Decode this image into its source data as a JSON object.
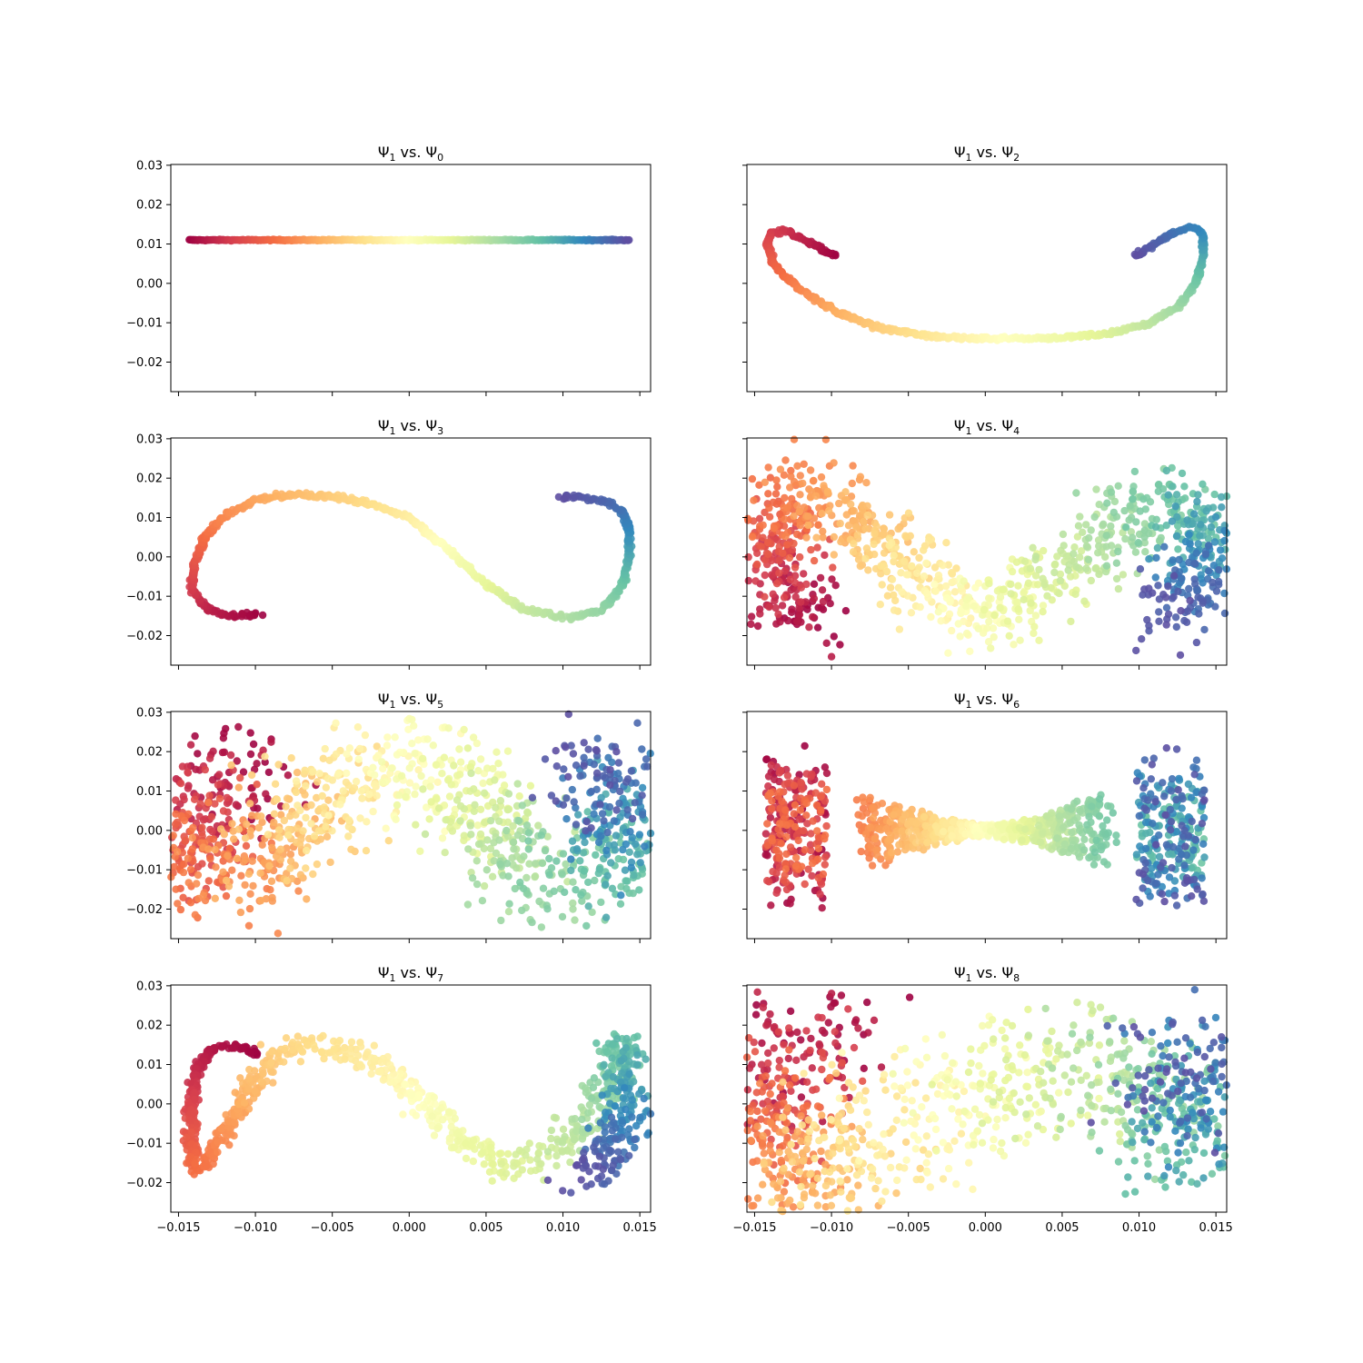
{
  "chart_data": [
    {
      "id": "p0",
      "type": "scatter",
      "title": {
        "main1": "Ψ",
        "sub1": "1",
        "mid": " vs. ",
        "main2": "Ψ",
        "sub2": "0"
      },
      "xlim": [
        -0.0155,
        0.0157
      ],
      "ylim": [
        -0.0275,
        0.0302
      ],
      "x_ticks": [
        "−0.015",
        "−0.010",
        "−0.005",
        "0.000",
        "0.005",
        "0.010",
        "0.015"
      ],
      "x_tick_values": [
        -0.015,
        -0.01,
        -0.005,
        0,
        0.005,
        0.01,
        0.015
      ],
      "y_ticks": [
        "0.03",
        "0.02",
        "0.01",
        "0.00",
        "−0.01",
        "−0.02"
      ],
      "y_tick_values": [
        0.03,
        0.02,
        0.01,
        0,
        -0.01,
        -0.02
      ],
      "show_x_labels": false,
      "show_y_labels": true,
      "curve": {
        "kind": "line",
        "y": 0.011,
        "x_start": -0.0143,
        "x_end": 0.0143
      },
      "width_start": 0.00045,
      "width_end": 0.00045,
      "n": 420
    },
    {
      "id": "p1",
      "type": "scatter",
      "title": {
        "main1": "Ψ",
        "sub1": "1",
        "mid": " vs. ",
        "main2": "Ψ",
        "sub2": "2"
      },
      "xlim": [
        -0.0155,
        0.0157
      ],
      "ylim": [
        -0.0275,
        0.0302
      ],
      "x_ticks": [
        "−0.015",
        "−0.010",
        "−0.005",
        "0.000",
        "0.005",
        "0.010",
        "0.015"
      ],
      "x_tick_values": [
        -0.015,
        -0.01,
        -0.005,
        0,
        0.005,
        0.01,
        0.015
      ],
      "y_ticks": [
        "0.03",
        "0.02",
        "0.01",
        "0.00",
        "−0.01",
        "−0.02"
      ],
      "y_tick_values": [
        0.03,
        0.02,
        0.01,
        0,
        -0.01,
        -0.02
      ],
      "show_x_labels": false,
      "show_y_labels": false,
      "curve": {
        "kind": "poly",
        "pts": [
          [
            -0.0098,
            0.007
          ],
          [
            -0.0115,
            0.0105
          ],
          [
            -0.013,
            0.0135
          ],
          [
            -0.0139,
            0.0128
          ],
          [
            -0.0142,
            0.01
          ],
          [
            -0.0138,
            0.005
          ],
          [
            -0.013,
            0.0015
          ],
          [
            -0.0115,
            -0.003
          ],
          [
            -0.0095,
            -0.0075
          ],
          [
            -0.007,
            -0.0112
          ],
          [
            -0.004,
            -0.0132
          ],
          [
            -0.001,
            -0.014
          ],
          [
            0.002,
            -0.014
          ],
          [
            0.005,
            -0.0138
          ],
          [
            0.008,
            -0.0128
          ],
          [
            0.0105,
            -0.0105
          ],
          [
            0.0125,
            -0.006
          ],
          [
            0.0137,
            0.0
          ],
          [
            0.0142,
            0.008
          ],
          [
            0.0142,
            0.0125
          ],
          [
            0.0135,
            0.0143
          ],
          [
            0.0122,
            0.0128
          ],
          [
            0.011,
            0.0098
          ],
          [
            0.0098,
            0.0072
          ]
        ]
      },
      "width_start": 0.0006,
      "width_end": 0.0006,
      "n": 620
    },
    {
      "id": "p2",
      "type": "scatter",
      "title": {
        "main1": "Ψ",
        "sub1": "1",
        "mid": " vs. ",
        "main2": "Ψ",
        "sub2": "3"
      },
      "xlim": [
        -0.0155,
        0.0157
      ],
      "ylim": [
        -0.0275,
        0.0302
      ],
      "x_ticks": [
        "−0.015",
        "−0.010",
        "−0.005",
        "0.000",
        "0.005",
        "0.010",
        "0.015"
      ],
      "x_tick_values": [
        -0.015,
        -0.01,
        -0.005,
        0,
        0.005,
        0.01,
        0.015
      ],
      "y_ticks": [
        "0.03",
        "0.02",
        "0.01",
        "0.00",
        "−0.01",
        "−0.02"
      ],
      "y_tick_values": [
        0.03,
        0.02,
        0.01,
        0,
        -0.01,
        -0.02
      ],
      "show_x_labels": false,
      "show_y_labels": true,
      "curve": {
        "kind": "poly",
        "pts": [
          [
            -0.0097,
            -0.0148
          ],
          [
            -0.0118,
            -0.0148
          ],
          [
            -0.0132,
            -0.013
          ],
          [
            -0.0141,
            -0.0085
          ],
          [
            -0.014,
            -0.002
          ],
          [
            -0.0133,
            0.005
          ],
          [
            -0.012,
            0.0105
          ],
          [
            -0.01,
            0.0145
          ],
          [
            -0.0075,
            0.0158
          ],
          [
            -0.005,
            0.0155
          ],
          [
            -0.0025,
            0.0135
          ],
          [
            0.0,
            0.01
          ],
          [
            0.0025,
            0.002
          ],
          [
            0.005,
            -0.007
          ],
          [
            0.0075,
            -0.0133
          ],
          [
            0.0105,
            -0.0155
          ],
          [
            0.0125,
            -0.0135
          ],
          [
            0.0138,
            -0.008
          ],
          [
            0.0143,
            0.0
          ],
          [
            0.0143,
            0.0075
          ],
          [
            0.0138,
            0.012
          ],
          [
            0.0125,
            0.0145
          ],
          [
            0.011,
            0.0152
          ],
          [
            0.0098,
            0.0152
          ]
        ]
      },
      "width_start": 0.0007,
      "width_end": 0.0007,
      "n": 650
    },
    {
      "id": "p3",
      "type": "scatter",
      "title": {
        "main1": "Ψ",
        "sub1": "1",
        "mid": " vs. ",
        "main2": "Ψ",
        "sub2": "4"
      },
      "xlim": [
        -0.0155,
        0.0157
      ],
      "ylim": [
        -0.0275,
        0.0302
      ],
      "x_ticks": [
        "−0.015",
        "−0.010",
        "−0.005",
        "0.000",
        "0.005",
        "0.010",
        "0.015"
      ],
      "x_tick_values": [
        -0.015,
        -0.01,
        -0.005,
        0,
        0.005,
        0.01,
        0.015
      ],
      "y_ticks": [
        "0.03",
        "0.02",
        "0.01",
        "0.00",
        "−0.01",
        "−0.02"
      ],
      "y_tick_values": [
        0.03,
        0.02,
        0.01,
        0,
        -0.01,
        -0.02
      ],
      "show_x_labels": false,
      "show_y_labels": false,
      "curve": {
        "kind": "poly",
        "pts": [
          [
            -0.0105,
            -0.015
          ],
          [
            -0.013,
            -0.011
          ],
          [
            -0.014,
            -0.003
          ],
          [
            -0.0138,
            0.008
          ],
          [
            -0.0125,
            0.017
          ],
          [
            -0.0105,
            0.016
          ],
          [
            -0.0075,
            0.006
          ],
          [
            -0.004,
            -0.006
          ],
          [
            0.0,
            -0.016
          ],
          [
            0.004,
            -0.006
          ],
          [
            0.0085,
            0.006
          ],
          [
            0.0118,
            0.014
          ],
          [
            0.0137,
            0.013
          ],
          [
            0.0142,
            0.0
          ],
          [
            0.0138,
            -0.009
          ],
          [
            0.011,
            -0.013
          ]
        ]
      },
      "width_start": 0.011,
      "width_end": 0.011,
      "n": 1100
    },
    {
      "id": "p4",
      "type": "scatter",
      "title": {
        "main1": "Ψ",
        "sub1": "1",
        "mid": " vs. ",
        "main2": "Ψ",
        "sub2": "5"
      },
      "xlim": [
        -0.0155,
        0.0157
      ],
      "ylim": [
        -0.0275,
        0.0302
      ],
      "x_ticks": [
        "−0.015",
        "−0.010",
        "−0.005",
        "0.000",
        "0.005",
        "0.010",
        "0.015"
      ],
      "x_tick_values": [
        -0.015,
        -0.01,
        -0.005,
        0,
        0.005,
        0.01,
        0.015
      ],
      "y_ticks": [
        "0.03",
        "0.02",
        "0.01",
        "0.00",
        "−0.01",
        "−0.02"
      ],
      "y_tick_values": [
        0.03,
        0.02,
        0.01,
        0,
        -0.01,
        -0.02
      ],
      "show_x_labels": false,
      "show_y_labels": true,
      "curve": {
        "kind": "poly",
        "pts": [
          [
            -0.0105,
            0.017
          ],
          [
            -0.013,
            0.01
          ],
          [
            -0.0141,
            0.0
          ],
          [
            -0.0135,
            -0.012
          ],
          [
            -0.011,
            -0.01
          ],
          [
            -0.008,
            -0.002
          ],
          [
            -0.004,
            0.012
          ],
          [
            0.0,
            0.017
          ],
          [
            0.004,
            0.01
          ],
          [
            0.007,
            -0.006
          ],
          [
            0.0105,
            -0.012
          ],
          [
            0.0135,
            -0.01
          ],
          [
            0.0142,
            0.0
          ],
          [
            0.0138,
            0.01
          ],
          [
            0.011,
            0.016
          ]
        ]
      },
      "width_start": 0.016,
      "width_end": 0.016,
      "n": 1200
    },
    {
      "id": "p5",
      "type": "scatter",
      "title": {
        "main1": "Ψ",
        "sub1": "1",
        "mid": " vs. ",
        "main2": "Ψ",
        "sub2": "6"
      },
      "xlim": [
        -0.0155,
        0.0157
      ],
      "ylim": [
        -0.0275,
        0.0302
      ],
      "x_ticks": [
        "−0.015",
        "−0.010",
        "−0.005",
        "0.000",
        "0.005",
        "0.010",
        "0.015"
      ],
      "x_tick_values": [
        -0.015,
        -0.01,
        -0.005,
        0,
        0.005,
        0.01,
        0.015
      ],
      "y_ticks": [
        "0.03",
        "0.02",
        "0.01",
        "0.00",
        "−0.01",
        "−0.02"
      ],
      "y_tick_values": [
        0.03,
        0.02,
        0.01,
        0,
        -0.01,
        -0.02
      ],
      "show_x_labels": false,
      "show_y_labels": false,
      "curve": {
        "kind": "line",
        "y": 0.0,
        "x_start": -0.0143,
        "x_end": 0.0143
      },
      "bowtie": true,
      "n": 1200
    },
    {
      "id": "p6",
      "type": "scatter",
      "title": {
        "main1": "Ψ",
        "sub1": "1",
        "mid": " vs. ",
        "main2": "Ψ",
        "sub2": "7"
      },
      "xlim": [
        -0.0155,
        0.0157
      ],
      "ylim": [
        -0.0275,
        0.0302
      ],
      "x_ticks": [
        "−0.015",
        "−0.010",
        "−0.005",
        "0.000",
        "0.005",
        "0.010",
        "0.015"
      ],
      "x_tick_values": [
        -0.015,
        -0.01,
        -0.005,
        0,
        0.005,
        0.01,
        0.015
      ],
      "y_ticks": [
        "0.03",
        "0.02",
        "0.01",
        "0.00",
        "−0.01",
        "−0.02"
      ],
      "y_tick_values": [
        0.03,
        0.02,
        0.01,
        0,
        -0.01,
        -0.02
      ],
      "show_x_labels": true,
      "show_y_labels": true,
      "curve": {
        "kind": "poly",
        "pts": [
          [
            -0.0098,
            0.0128
          ],
          [
            -0.0112,
            0.0148
          ],
          [
            -0.0127,
            0.0143
          ],
          [
            -0.0138,
            0.009
          ],
          [
            -0.0142,
            0.0
          ],
          [
            -0.0141,
            -0.0125
          ],
          [
            -0.0137,
            -0.0165
          ],
          [
            -0.013,
            -0.014
          ],
          [
            -0.012,
            -0.007
          ],
          [
            -0.0105,
            0.003
          ],
          [
            -0.009,
            0.0115
          ],
          [
            -0.007,
            0.0148
          ],
          [
            -0.0045,
            0.0142
          ],
          [
            -0.002,
            0.01
          ],
          [
            0.001,
            0.0
          ],
          [
            0.004,
            -0.011
          ],
          [
            0.0065,
            -0.016
          ],
          [
            0.0095,
            -0.0125
          ],
          [
            0.012,
            -0.003
          ],
          [
            0.0134,
            0.009
          ],
          [
            0.014,
            0.0155
          ],
          [
            0.0142,
            0.01
          ],
          [
            0.0138,
            -0.006
          ],
          [
            0.0125,
            -0.0175
          ],
          [
            0.0105,
            -0.0165
          ]
        ]
      },
      "width_start": 0.0009,
      "width_end": 0.0075,
      "n": 950
    },
    {
      "id": "p7",
      "type": "scatter",
      "title": {
        "main1": "Ψ",
        "sub1": "1",
        "mid": " vs. ",
        "main2": "Ψ",
        "sub2": "8"
      },
      "xlim": [
        -0.0155,
        0.0157
      ],
      "ylim": [
        -0.0275,
        0.0302
      ],
      "x_ticks": [
        "−0.015",
        "−0.010",
        "−0.005",
        "0.000",
        "0.005",
        "0.010",
        "0.015"
      ],
      "x_tick_values": [
        -0.015,
        -0.01,
        -0.005,
        0,
        0.005,
        0.01,
        0.015
      ],
      "y_ticks": [
        "0.03",
        "0.02",
        "0.01",
        "0.00",
        "−0.01",
        "−0.02"
      ],
      "y_tick_values": [
        0.03,
        0.02,
        0.01,
        0,
        -0.01,
        -0.02
      ],
      "show_x_labels": true,
      "show_y_labels": false,
      "curve": {
        "kind": "poly",
        "pts": [
          [
            -0.0105,
            0.02
          ],
          [
            -0.013,
            0.013
          ],
          [
            -0.0142,
            0.0
          ],
          [
            -0.0138,
            -0.015
          ],
          [
            -0.012,
            -0.02
          ],
          [
            -0.009,
            -0.012
          ],
          [
            -0.005,
            -0.005
          ],
          [
            -0.002,
            0.0
          ],
          [
            0.001,
            0.005
          ],
          [
            0.005,
            0.01
          ],
          [
            0.009,
            0.006
          ],
          [
            0.012,
            0.0
          ],
          [
            0.0135,
            -0.008
          ],
          [
            0.0142,
            0.0
          ],
          [
            0.0138,
            0.01
          ],
          [
            0.0115,
            0.005
          ]
        ]
      },
      "width_start": 0.02,
      "width_end": 0.02,
      "n": 1200
    }
  ],
  "colormap": [
    "#9e0142",
    "#d53e4f",
    "#f46d43",
    "#fdae61",
    "#fee08b",
    "#ffffbf",
    "#e6f598",
    "#abdda4",
    "#66c2a5",
    "#3288bd",
    "#5e4fa2"
  ]
}
